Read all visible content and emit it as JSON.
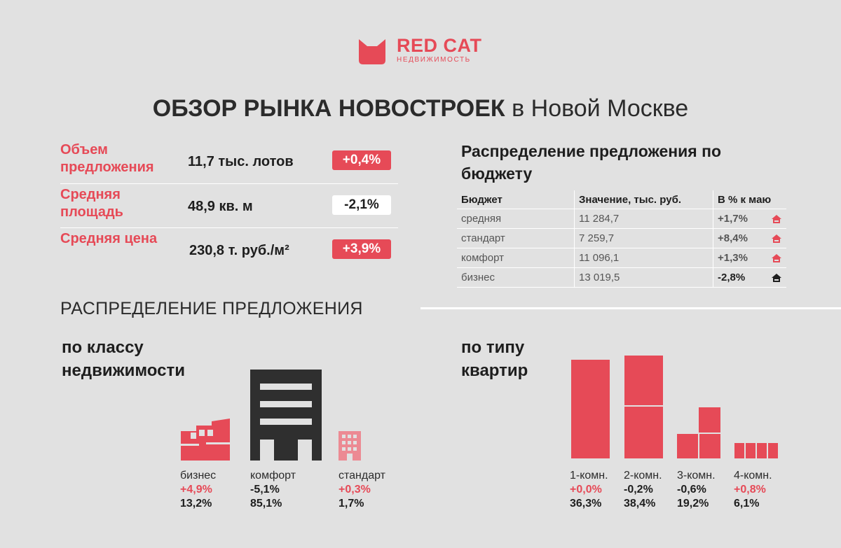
{
  "brand": {
    "name": "RED CAT",
    "sub": "НЕДВИЖИМОСТЬ",
    "color": "#e64a57"
  },
  "title": {
    "bold": "ОБЗОР РЫНКА НОВОСТРОЕК",
    "regular": "в Новой Москве"
  },
  "kpis": [
    {
      "label": "Объем предложения",
      "value": "11,7 тыс. лотов",
      "change": "+0,4%",
      "trend": "up"
    },
    {
      "label": "Средняя площадь",
      "value": "48,9 кв. м",
      "change": "-2,1%",
      "trend": "down"
    },
    {
      "label": "Средняя цена",
      "value": "230,8 т. руб./м²",
      "change": "+3,9%",
      "trend": "up"
    }
  ],
  "budget": {
    "title": "Распределение предложения по бюджету",
    "columns": [
      "Бюджет",
      "Значение, тыс. руб.",
      "В % к маю"
    ],
    "rows": [
      {
        "segment": "средняя",
        "value": "11 284,7",
        "change": "+1,7%",
        "trend": "up"
      },
      {
        "segment": "стандарт",
        "value": "7 259,7",
        "change": "+8,4%",
        "trend": "up"
      },
      {
        "segment": "комфорт",
        "value": "11 096,1",
        "change": "+1,3%",
        "trend": "up"
      },
      {
        "segment": "бизнес",
        "value": "13 019,5",
        "change": "-2,8%",
        "trend": "down"
      }
    ]
  },
  "distribution": {
    "title": "РАСПРЕДЕЛЕНИЕ ПРЕДЛОЖЕНИЯ",
    "by_class": {
      "title": "по классу недвижимости",
      "items": [
        {
          "label": "бизнес",
          "change": "+4,9%",
          "share": "13,2%",
          "trend": "up",
          "icon": "factory-icon"
        },
        {
          "label": "комфорт",
          "change": "-5,1%",
          "share": "85,1%",
          "trend": "down",
          "icon": "building-icon"
        },
        {
          "label": "стандарт",
          "change": "+0,3%",
          "share": "1,7%",
          "trend": "up",
          "icon": "small-building-icon"
        }
      ]
    },
    "by_type": {
      "title": "по типу квартир",
      "items": [
        {
          "label": "1-комн.",
          "change": "+0,0%",
          "share": "36,3%",
          "trend": "up"
        },
        {
          "label": "2-комн.",
          "change": "-0,2%",
          "share": "38,4%",
          "trend": "down"
        },
        {
          "label": "3-комн.",
          "change": "-0,6%",
          "share": "19,2%",
          "trend": "down"
        },
        {
          "label": "4-комн.",
          "change": "+0,8%",
          "share": "6,1%",
          "trend": "up"
        }
      ]
    }
  }
}
